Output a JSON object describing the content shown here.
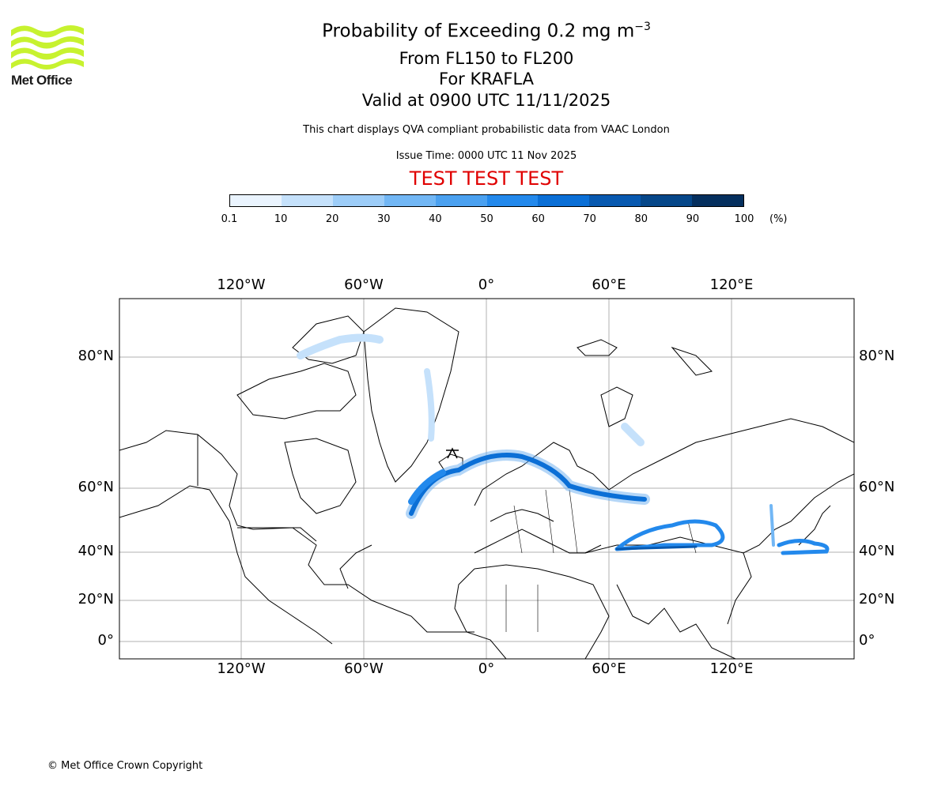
{
  "logo": {
    "name": "Met Office",
    "accent": "#c7f22f"
  },
  "title": {
    "main": "Probability of Exceeding 0.2 mg m",
    "main_sup": "−3",
    "levels": "From FL150 to FL200",
    "volcano": "For KRAFLA",
    "valid": "Valid at 0900 UTC 11/11/2025",
    "description": "This chart displays QVA compliant probabilistic data from VAAC London",
    "issue": "Issue Time: 0000 UTC 11 Nov 2025",
    "test_banner": "TEST TEST TEST"
  },
  "colorbar": {
    "ticks": [
      "0.1",
      "10",
      "20",
      "30",
      "40",
      "50",
      "60",
      "70",
      "80",
      "90",
      "100"
    ],
    "unit": "(%)",
    "colors": [
      "#eaf4fe",
      "#c5e1fb",
      "#9dcdf8",
      "#72b7f5",
      "#4ba1f0",
      "#2389ec",
      "#0b6fd6",
      "#0859b0",
      "#064789",
      "#052f5e"
    ]
  },
  "axes": {
    "top_lon": [
      "120°W",
      "60°W",
      "0°",
      "60°E",
      "120°E"
    ],
    "bottom_lon": [
      "120°W",
      "60°W",
      "0°",
      "60°E",
      "120°E"
    ],
    "left_lat": [
      "80°N",
      "60°N",
      "40°N",
      "20°N",
      "0°"
    ],
    "right_lat": [
      "80°N",
      "60°N",
      "40°N",
      "20°N",
      "0°"
    ]
  },
  "copyright": "© Met Office Crown Copyright"
}
